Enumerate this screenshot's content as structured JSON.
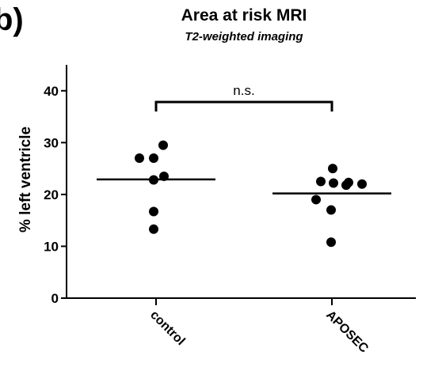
{
  "panel_label": "b)",
  "chart_data": {
    "type": "scatter",
    "title": "Area at risk MRI",
    "subtitle": "T2-weighted imaging",
    "xlabel": "",
    "ylabel": "% left ventricle",
    "ylim": [
      0,
      45
    ],
    "yticks": [
      0,
      10,
      20,
      30,
      40
    ],
    "grid": false,
    "categories": [
      "control",
      "APOSEC"
    ],
    "series": [
      {
        "category": "control",
        "values": [
          29.5,
          27.0,
          27.0,
          23.5,
          22.8,
          16.7,
          13.3
        ],
        "mean": 22.9
      },
      {
        "category": "APOSEC",
        "values": [
          25.0,
          22.5,
          22.2,
          22.3,
          21.8,
          22.0,
          19.0,
          17.0,
          10.8
        ],
        "mean": 20.2
      }
    ],
    "annotations": [
      {
        "text": "n.s.",
        "type": "significance-bracket",
        "between": [
          "control",
          "APOSEC"
        ]
      }
    ],
    "colors": {
      "points": "#000000",
      "lines": "#000000"
    }
  }
}
